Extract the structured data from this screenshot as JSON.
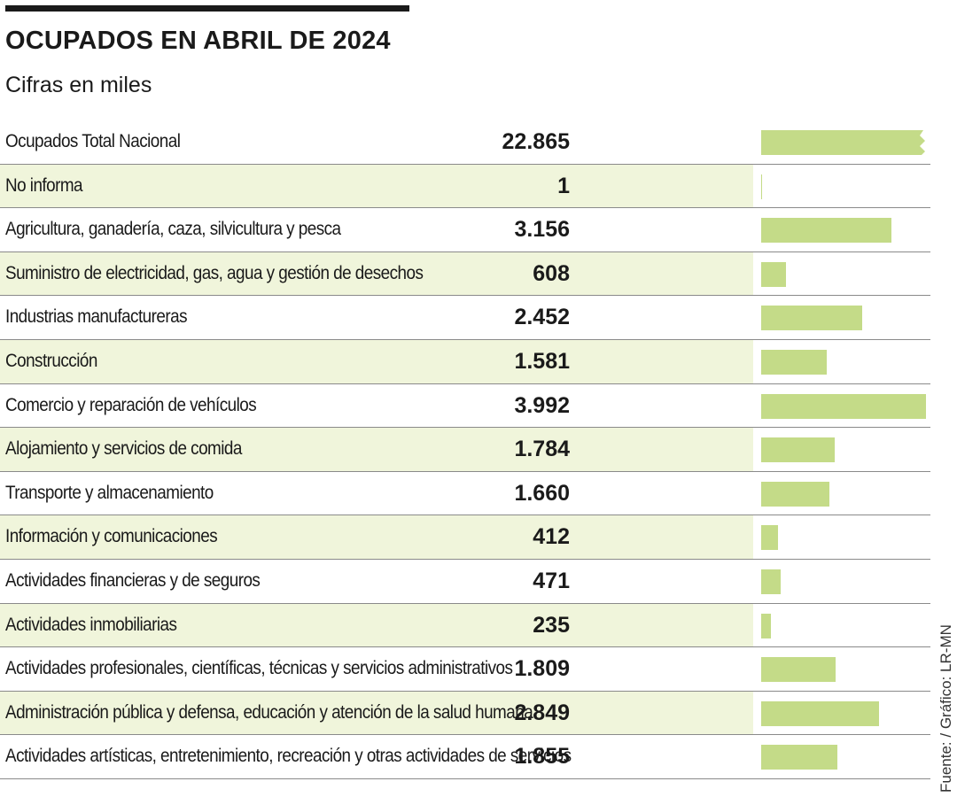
{
  "chart_data": {
    "type": "bar",
    "title": "OCUPADOS EN ABRIL DE 2024",
    "subtitle": "Cifras en miles",
    "source": "Fuente: / Gráfico: LR-MN",
    "colors": {
      "bar": "#c4db88",
      "shade": "#f0f5db",
      "text": "#1a1a1a"
    },
    "categories": [
      "Ocupados Total Nacional",
      "No informa",
      "Agricultura, ganadería, caza, silvicultura y pesca",
      "Suministro de electricidad, gas, agua y gestión de desechos",
      "Industrias manufactureras",
      "Construcción",
      "Comercio y reparación de vehículos",
      "Alojamiento y servicios de comida",
      "Transporte y almacenamiento",
      "Información y comunicaciones",
      "Actividades financieras y de seguros",
      "Actividades inmobiliarias",
      "Actividades profesionales, científicas, técnicas y servicios administrativos",
      "Administración pública y defensa, educación y atención de la salud humana",
      "Actividades artísticas, entretenimiento, recreación y otras actividades de servicios"
    ],
    "labels": [
      "22.865",
      "1",
      "3.156",
      "608",
      "2.452",
      "1.581",
      "3.992",
      "1.784",
      "1.660",
      "412",
      "471",
      "235",
      "1.809",
      "2.849",
      "1.855"
    ],
    "values": [
      22865,
      1,
      3156,
      608,
      2452,
      1581,
      3992,
      1784,
      1660,
      412,
      471,
      235,
      1809,
      2849,
      1855
    ],
    "truncated": [
      true,
      false,
      false,
      false,
      false,
      false,
      false,
      false,
      false,
      false,
      false,
      false,
      false,
      false,
      false
    ],
    "scale_max": 3992,
    "unit": "miles"
  }
}
